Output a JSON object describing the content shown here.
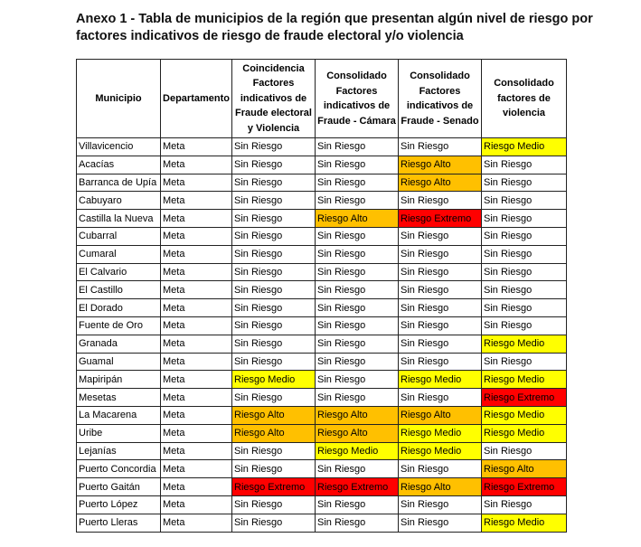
{
  "title": "Anexo 1 - Tabla de municipios de la región que presentan algún nivel de riesgo por factores indicativos de riesgo de fraude electoral y/o violencia",
  "colors": {
    "Riesgo Medio": "#ffff00",
    "Riesgo Alto": "#ffc000",
    "Riesgo Extremo": "#ff0000",
    "Sin Riesgo": "#ffffff"
  },
  "headers": [
    "Municipio",
    "Departamento",
    "Coincidencia Factores indicativos de Fraude electoral y Violencia",
    "Consolidado Factores indicativos de Fraude - Cámara",
    "Consolidado Factores indicativos de Fraude - Senado",
    "Consolidado factores de violencia"
  ],
  "rows": [
    [
      "Villavicencio",
      "Meta",
      "Sin Riesgo",
      "Sin Riesgo",
      "Sin Riesgo",
      "Riesgo Medio"
    ],
    [
      "Acacías",
      "Meta",
      "Sin Riesgo",
      "Sin Riesgo",
      "Riesgo Alto",
      "Sin Riesgo"
    ],
    [
      "Barranca de Upía",
      "Meta",
      "Sin Riesgo",
      "Sin Riesgo",
      "Riesgo Alto",
      "Sin Riesgo"
    ],
    [
      "Cabuyaro",
      "Meta",
      "Sin Riesgo",
      "Sin Riesgo",
      "Sin Riesgo",
      "Sin Riesgo"
    ],
    [
      "Castilla la Nueva",
      "Meta",
      "Sin Riesgo",
      "Riesgo Alto",
      "Riesgo Extremo",
      "Sin Riesgo"
    ],
    [
      "Cubarral",
      "Meta",
      "Sin Riesgo",
      "Sin Riesgo",
      "Sin Riesgo",
      "Sin Riesgo"
    ],
    [
      "Cumaral",
      "Meta",
      "Sin Riesgo",
      "Sin Riesgo",
      "Sin Riesgo",
      "Sin Riesgo"
    ],
    [
      "El Calvario",
      "Meta",
      "Sin Riesgo",
      "Sin Riesgo",
      "Sin Riesgo",
      "Sin Riesgo"
    ],
    [
      "El Castillo",
      "Meta",
      "Sin Riesgo",
      "Sin Riesgo",
      "Sin Riesgo",
      "Sin Riesgo"
    ],
    [
      "El Dorado",
      "Meta",
      "Sin Riesgo",
      "Sin Riesgo",
      "Sin Riesgo",
      "Sin Riesgo"
    ],
    [
      "Fuente de Oro",
      "Meta",
      "Sin Riesgo",
      "Sin Riesgo",
      "Sin Riesgo",
      "Sin Riesgo"
    ],
    [
      "Granada",
      "Meta",
      "Sin Riesgo",
      "Sin Riesgo",
      "Sin Riesgo",
      "Riesgo Medio"
    ],
    [
      "Guamal",
      "Meta",
      "Sin Riesgo",
      "Sin Riesgo",
      "Sin Riesgo",
      "Sin Riesgo"
    ],
    [
      "Mapiripán",
      "Meta",
      "Riesgo Medio",
      "Sin Riesgo",
      "Riesgo Medio",
      "Riesgo Medio"
    ],
    [
      "Mesetas",
      "Meta",
      "Sin Riesgo",
      "Sin Riesgo",
      "Sin Riesgo",
      "Riesgo Extremo"
    ],
    [
      "La Macarena",
      "Meta",
      "Riesgo Alto",
      "Riesgo Alto",
      "Riesgo Alto",
      "Riesgo Medio"
    ],
    [
      "Uribe",
      "Meta",
      "Riesgo Alto",
      "Riesgo Alto",
      "Riesgo Medio",
      "Riesgo Medio"
    ],
    [
      "Lejanías",
      "Meta",
      "Sin Riesgo",
      "Riesgo Medio",
      "Riesgo Medio",
      "Sin Riesgo"
    ],
    [
      "Puerto Concordia",
      "Meta",
      "Sin Riesgo",
      "Sin Riesgo",
      "Sin Riesgo",
      "Riesgo Alto"
    ],
    [
      "Puerto Gaitán",
      "Meta",
      "Riesgo Extremo",
      "Riesgo Extremo",
      "Riesgo Alto",
      "Riesgo Extremo"
    ],
    [
      "Puerto López",
      "Meta",
      "Sin Riesgo",
      "Sin Riesgo",
      "Sin Riesgo",
      "Sin Riesgo"
    ],
    [
      "Puerto Lleras",
      "Meta",
      "Sin Riesgo",
      "Sin Riesgo",
      "Sin Riesgo",
      "Riesgo Medio"
    ]
  ]
}
